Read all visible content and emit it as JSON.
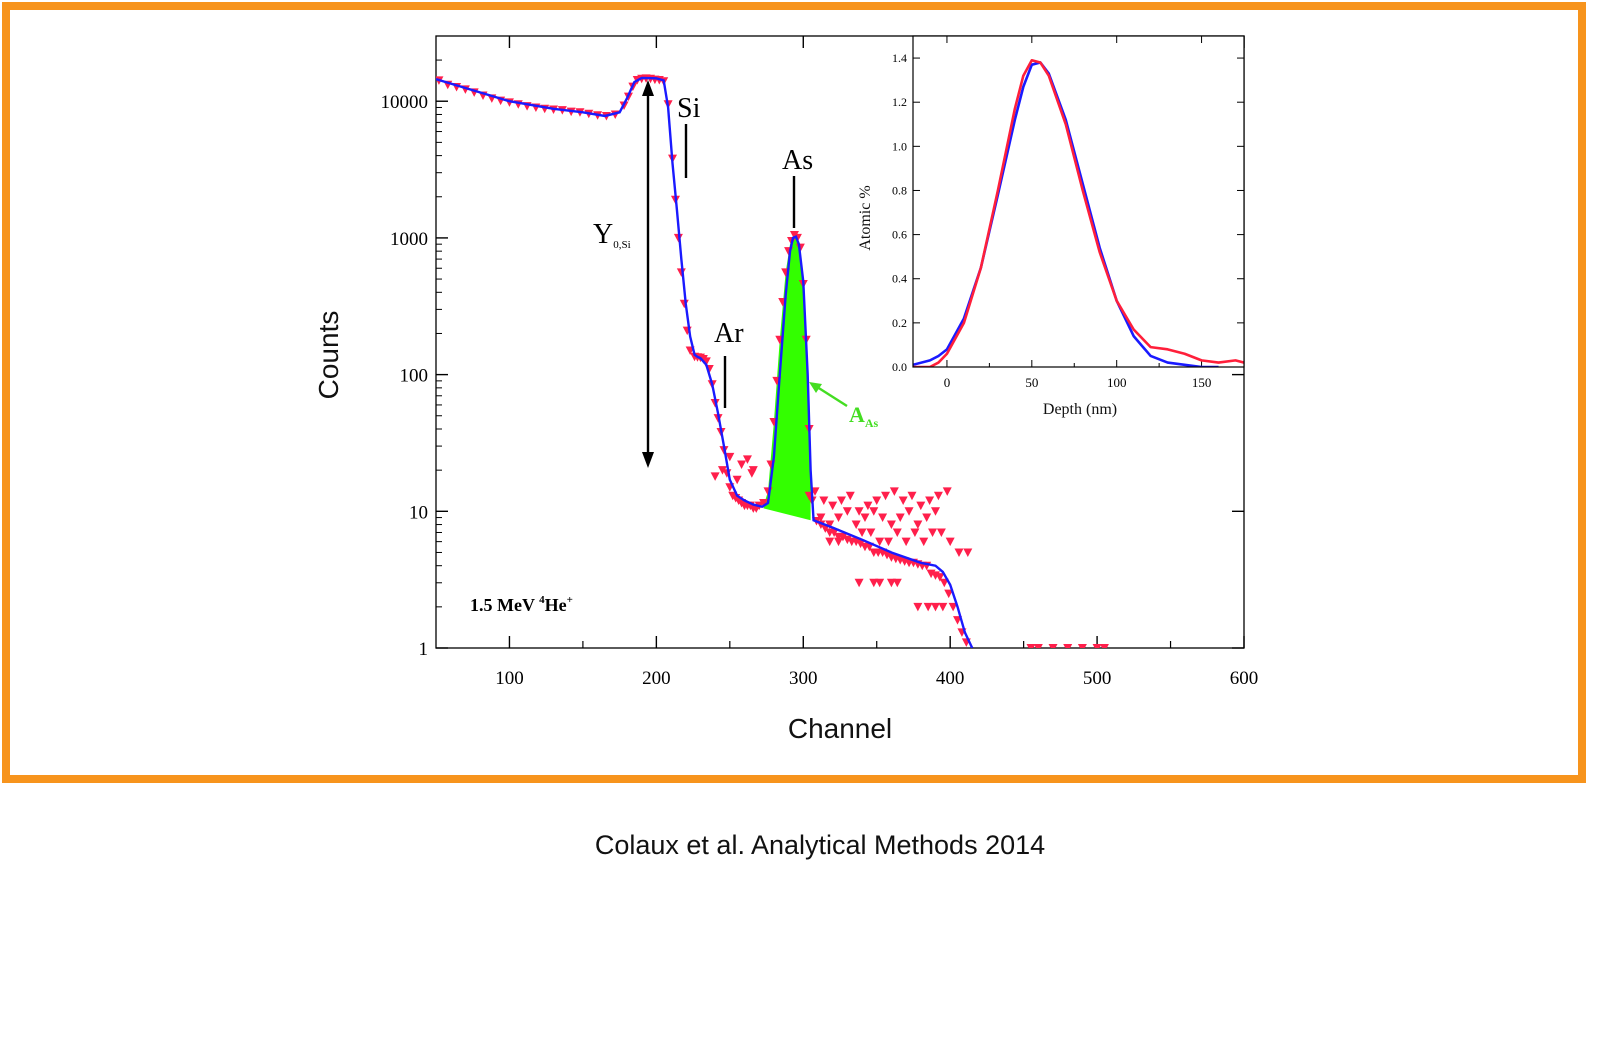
{
  "caption": "Colaux et al. Analytical Methods 2014",
  "colors": {
    "frame": "#f7941d",
    "fit": "#1a1aff",
    "data": "#ff1f4b",
    "area": "#33ff00",
    "area_label": "#44dd22"
  },
  "chart_data": [
    {
      "type": "scatter",
      "xlabel": "Channel",
      "ylabel": "Counts",
      "xlim": [
        50,
        600
      ],
      "ylim": [
        1,
        30000
      ],
      "yscale": "log",
      "xticks": [
        100,
        200,
        300,
        400,
        500,
        600
      ],
      "yticks": [
        1,
        10,
        100,
        1000,
        10000
      ],
      "ytick_labels": [
        "1",
        "10",
        "100",
        "1000",
        "10000"
      ],
      "grid": false,
      "annotations": {
        "beam": {
          "main": "1.5 MeV ",
          "sup1": "4",
          "mid": "He",
          "sup2": "+"
        },
        "si": "Si",
        "as": "As",
        "ar": "Ar",
        "yield": {
          "main": "Y",
          "sub": "0,Si"
        },
        "area": {
          "main": "A",
          "sub": "As"
        }
      },
      "series": [
        {
          "style": "line",
          "x": [
            50,
            70,
            100,
            130,
            150,
            165,
            175,
            180,
            185,
            190,
            200,
            205,
            208,
            211,
            214,
            217,
            220,
            223,
            226,
            228,
            230,
            234,
            238,
            242,
            246,
            250,
            255,
            260,
            266,
            272,
            276,
            280,
            284,
            288,
            291,
            293,
            295,
            297,
            300,
            303,
            305,
            307,
            320,
            340,
            360,
            380,
            390,
            395,
            400,
            405,
            410,
            415
          ],
          "y": [
            14500,
            12500,
            10000,
            8800,
            8300,
            7800,
            8300,
            10500,
            13800,
            14800,
            14700,
            14200,
            9000,
            3500,
            1600,
            700,
            330,
            190,
            140,
            135,
            132,
            118,
            85,
            52,
            30,
            17,
            13,
            12,
            11.2,
            10.8,
            11.5,
            25,
            100,
            380,
            800,
            1000,
            1020,
            900,
            480,
            100,
            20,
            8.6,
            7.6,
            6.2,
            5,
            4.2,
            4.0,
            3.6,
            2.9,
            2.0,
            1.3,
            1.0
          ]
        },
        {
          "style": "markers",
          "x": [
            52,
            58,
            64,
            70,
            76,
            82,
            88,
            94,
            100,
            106,
            112,
            118,
            124,
            130,
            136,
            142,
            148,
            154,
            160,
            166,
            172,
            178,
            181,
            184,
            187,
            190,
            193,
            196,
            199,
            202,
            205,
            208,
            211,
            213,
            215,
            217,
            219,
            221,
            223,
            226,
            228,
            230,
            232,
            234,
            236,
            238,
            240,
            242,
            244,
            246,
            248,
            250,
            252,
            254,
            256,
            258,
            260,
            262,
            264,
            266,
            268,
            270,
            273,
            276,
            278,
            280,
            282,
            284,
            286,
            288,
            290,
            292,
            294,
            296,
            298,
            300,
            302,
            304,
            306,
            309,
            312,
            315,
            318,
            321,
            324,
            327,
            330,
            333,
            336,
            339,
            342,
            345,
            348,
            351,
            354,
            357,
            360,
            363,
            366,
            369,
            372,
            375,
            378,
            381,
            384,
            387,
            390,
            393,
            396,
            399,
            402,
            405,
            408,
            411,
            250,
            258,
            262,
            266,
            304,
            308,
            314,
            320,
            326,
            332,
            338,
            344,
            350,
            356,
            362,
            368,
            374,
            380,
            386,
            392,
            398,
            240,
            245,
            255,
            265,
            312,
            318,
            324,
            330,
            336,
            342,
            348,
            354,
            360,
            366,
            372,
            378,
            384,
            390,
            318,
            324,
            340,
            346,
            352,
            358,
            364,
            370,
            376,
            382,
            388,
            394,
            400,
            406,
            412,
            338,
            348,
            352,
            360,
            364,
            378,
            385,
            390,
            395,
            455,
            460,
            470,
            480,
            490,
            500,
            505
          ],
          "y": [
            14200,
            13200,
            12700,
            12200,
            11600,
            11000,
            10500,
            10100,
            9800,
            9500,
            9200,
            9000,
            8800,
            8700,
            8600,
            8400,
            8300,
            8100,
            7900,
            7800,
            8000,
            9300,
            10800,
            12800,
            14300,
            14600,
            14700,
            14600,
            14400,
            14300,
            14000,
            9500,
            3800,
            1900,
            1000,
            560,
            330,
            210,
            150,
            135,
            134,
            133,
            130,
            125,
            110,
            85,
            62,
            48,
            38,
            28,
            19,
            15,
            13,
            12.5,
            12,
            11.5,
            11,
            11,
            11,
            10.5,
            10.5,
            11,
            11.5,
            14,
            22,
            45,
            90,
            180,
            340,
            560,
            800,
            950,
            1050,
            1000,
            850,
            460,
            180,
            40,
            12,
            8.5,
            8,
            7.5,
            7,
            7,
            6.5,
            6.5,
            6.2,
            6,
            6,
            5.8,
            5.5,
            5.5,
            5,
            5,
            5,
            4.8,
            4.6,
            4.5,
            4.4,
            4.3,
            4.2,
            4.2,
            4.1,
            4,
            4,
            3.5,
            3.4,
            3.3,
            3,
            2.5,
            2,
            1.6,
            1.3,
            1.1,
            25,
            22,
            24,
            20,
            13,
            14,
            12,
            11,
            12,
            13,
            10,
            11,
            12,
            13,
            14,
            12,
            13,
            11,
            12,
            13,
            14,
            18,
            20,
            17,
            19,
            9,
            8,
            9,
            10,
            8,
            9,
            10,
            9,
            8,
            9,
            10,
            8,
            9,
            10,
            6,
            6,
            7,
            7,
            6,
            6,
            7,
            6,
            7,
            6,
            7,
            7,
            6,
            5,
            5,
            3,
            3,
            3,
            3,
            3,
            2,
            2,
            2,
            2,
            1,
            1,
            1,
            1,
            1,
            1,
            1
          ]
        }
      ],
      "filled_peak": {
        "x": [
          273,
          276,
          280,
          284,
          288,
          291,
          293,
          295,
          297,
          300,
          303,
          305
        ],
        "y_top": [
          11,
          14,
          45,
          180,
          560,
          900,
          1030,
          1010,
          900,
          470,
          110,
          22
        ],
        "baseline": [
          10.5,
          8.6
        ]
      }
    },
    {
      "type": "line",
      "xlabel": "Depth (nm)",
      "ylabel": "Atomic %",
      "xlim": [
        -20,
        175
      ],
      "ylim": [
        0,
        1.5
      ],
      "xticks": [
        0,
        50,
        100,
        150
      ],
      "yticks": [
        0.0,
        0.2,
        0.4,
        0.6,
        0.8,
        1.0,
        1.2,
        1.4
      ],
      "grid": false,
      "series": [
        {
          "color": "#1a1aff",
          "x": [
            -20,
            -10,
            -5,
            0,
            10,
            20,
            30,
            40,
            45,
            50,
            55,
            60,
            70,
            80,
            90,
            100,
            110,
            120,
            130,
            140,
            150,
            160
          ],
          "y": [
            0.01,
            0.03,
            0.05,
            0.08,
            0.22,
            0.45,
            0.78,
            1.12,
            1.27,
            1.37,
            1.38,
            1.33,
            1.12,
            0.83,
            0.54,
            0.3,
            0.14,
            0.05,
            0.02,
            0.01,
            0.0,
            0.0
          ]
        },
        {
          "color": "#ff1f3a",
          "x": [
            -20,
            -10,
            -5,
            0,
            10,
            20,
            30,
            40,
            45,
            50,
            55,
            60,
            70,
            80,
            90,
            100,
            110,
            120,
            130,
            140,
            150,
            160,
            170,
            175
          ],
          "y": [
            0.0,
            0.0,
            0.02,
            0.06,
            0.2,
            0.45,
            0.8,
            1.17,
            1.32,
            1.39,
            1.38,
            1.32,
            1.1,
            0.8,
            0.52,
            0.3,
            0.17,
            0.09,
            0.08,
            0.06,
            0.03,
            0.02,
            0.03,
            0.02
          ]
        }
      ]
    }
  ]
}
